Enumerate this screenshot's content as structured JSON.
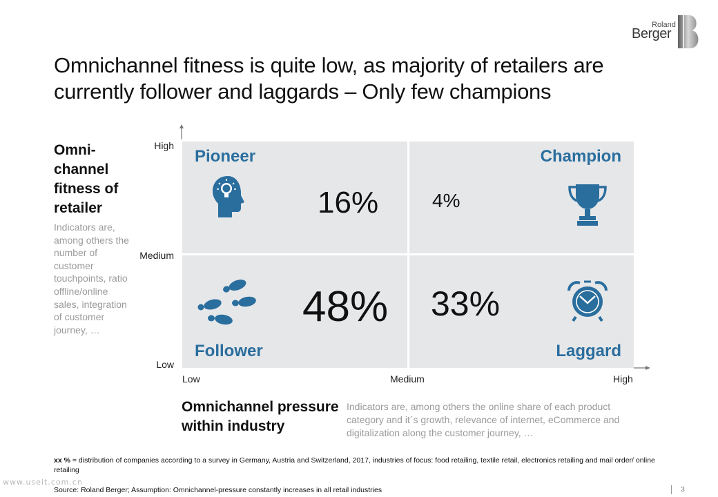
{
  "brand": {
    "line1": "Roland",
    "line2": "Berger",
    "colors": {
      "accent": "#2a6e9e",
      "grid_bg": "#e6e7e9",
      "muted_text": "#9a9a9a"
    }
  },
  "title": "Omnichannel fitness is quite low, as majority of retailers are currently follower and laggards – Only few champions",
  "y_axis": {
    "title": "Omni-channel fitness of retailer",
    "description": "Indicators are, among others the number of customer touchpoints, ratio offline/online sales, integration of customer journey, …",
    "ticks": {
      "high": "High",
      "medium": "Medium",
      "low": "Low"
    }
  },
  "x_axis": {
    "title": "Omnichannel pressure within industry",
    "description": "Indicators are, among others the online share of each product category and it´s growth, relevance of internet, eCommerce and digitalization along the customer journey, …",
    "ticks": {
      "low": "Low",
      "medium": "Medium",
      "high": "High"
    }
  },
  "quadrants": {
    "pioneer": {
      "label": "Pioneer",
      "value": "16%",
      "icon": "head-lightbulb-icon"
    },
    "champion": {
      "label": "Champion",
      "value": "4%",
      "icon": "trophy-icon"
    },
    "follower": {
      "label": "Follower",
      "value": "48%",
      "icon": "footprints-icon"
    },
    "laggard": {
      "label": "Laggard",
      "value": "33%",
      "icon": "alarm-clock-icon"
    }
  },
  "footnote": {
    "key": "xx %",
    "text": " = distribution of companies according to a survey in Germany, Austria and Switzerland, 2017, industries of focus: food retailing, textile retail, electronics retailing and mail order/ online retailing"
  },
  "source": "Source: Roland Berger; Assumption: Omnichannel-pressure constantly increases in all retail industries",
  "watermark": "www.useit.com.cn",
  "page_number": "3",
  "chart_data": {
    "type": "table",
    "title": "Omnichannel fitness is quite low, as majority of retailers are currently follower and laggards – Only few champions",
    "xlabel": "Omnichannel pressure within industry",
    "ylabel": "Omni-channel fitness of retailer",
    "columns": [
      "Low–Medium pressure",
      "Medium–High pressure"
    ],
    "rows": [
      {
        "fitness": "Medium–High",
        "cells": [
          {
            "segment": "Pioneer",
            "share": 16
          },
          {
            "segment": "Champion",
            "share": 4
          }
        ]
      },
      {
        "fitness": "Low–Medium",
        "cells": [
          {
            "segment": "Follower",
            "share": 48
          },
          {
            "segment": "Laggard",
            "share": 33
          }
        ]
      }
    ],
    "unit": "%"
  }
}
